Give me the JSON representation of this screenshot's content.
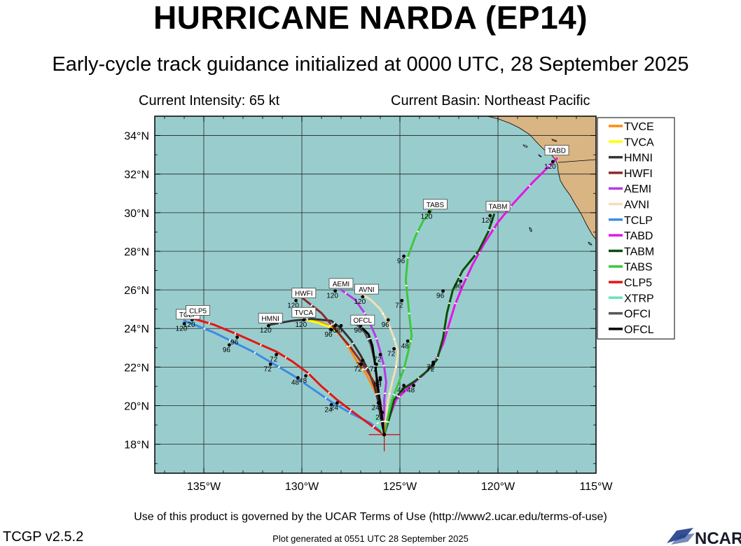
{
  "header": {
    "title": "HURRICANE NARDA (EP14)",
    "subtitle": "Early-cycle track guidance initialized at 0000 UTC, 28 September 2025",
    "intensity": "Current Intensity: 65 kt",
    "basin": "Current Basin: Northeast Pacific"
  },
  "footer": {
    "terms": "Use of this product is governed by the UCAR Terms of Use (http://www2.ucar.edu/terms-of-use)",
    "version": "TCGP v2.5.2",
    "generated": "Plot generated at 0551 UTC   28 September 2025",
    "logo": "NCAR"
  },
  "colors": {
    "ocean": "#99cdcd",
    "land": "#d9b583",
    "storm_marker": "#dd0000"
  },
  "chart_data": {
    "type": "map-track",
    "xlim": [
      -137.5,
      -115
    ],
    "ylim": [
      16.5,
      35
    ],
    "x_ticks": [
      -135,
      -130,
      -125,
      -120,
      -115
    ],
    "x_tick_labels": [
      "135°W",
      "130°W",
      "125°W",
      "120°W",
      "115°W"
    ],
    "y_ticks": [
      18,
      20,
      22,
      24,
      26,
      28,
      30,
      32,
      34
    ],
    "y_tick_labels": [
      "18°N",
      "20°N",
      "22°N",
      "24°N",
      "26°N",
      "28°N",
      "30°N",
      "32°N",
      "34°N"
    ],
    "grid": true,
    "legend_position": "right",
    "current_position": [
      -125.8,
      18.5
    ],
    "series": [
      {
        "name": "TVCE",
        "color": "#ff8a14",
        "points": [
          [
            -125.8,
            18.5
          ],
          [
            -125.9,
            19.3
          ],
          [
            -126.0,
            20.0
          ],
          [
            -126.3,
            20.8
          ],
          [
            -126.7,
            21.6
          ],
          [
            -127.2,
            22.3
          ],
          [
            -127.6,
            23.0
          ],
          [
            -128.0,
            23.6
          ],
          [
            -128.3,
            24.0
          ],
          [
            -129.0,
            24.3
          ],
          [
            -130.0,
            24.5
          ]
        ],
        "hours": [
          [
            "24",
            -125.9,
            19.5
          ],
          [
            "48",
            -126.0,
            21.2
          ],
          [
            "72",
            -126.9,
            22.2
          ],
          [
            "96",
            -128.3,
            24.0
          ],
          [
            "120",
            -129.9,
            24.3
          ]
        ],
        "box": null
      },
      {
        "name": "TVCA",
        "color": "#ffff00",
        "points": [
          [
            -125.8,
            18.5
          ],
          [
            -125.9,
            19.3
          ],
          [
            -126.0,
            20.0
          ],
          [
            -126.2,
            20.8
          ],
          [
            -126.5,
            21.6
          ],
          [
            -127.0,
            22.3
          ],
          [
            -127.5,
            23.0
          ],
          [
            -128.0,
            23.6
          ],
          [
            -128.4,
            24.0
          ],
          [
            -129.2,
            24.3
          ],
          [
            -130.0,
            24.5
          ]
        ],
        "hours": [],
        "box": [
          "TVCA",
          -129.9,
          24.8
        ]
      },
      {
        "name": "HMNI",
        "color": "#333333",
        "points": [
          [
            -125.8,
            18.5
          ],
          [
            -126.0,
            19.5
          ],
          [
            -126.1,
            20.2
          ],
          [
            -126.3,
            21.0
          ],
          [
            -126.6,
            21.8
          ],
          [
            -127.0,
            22.6
          ],
          [
            -127.5,
            23.4
          ],
          [
            -128.0,
            24.0
          ],
          [
            -128.5,
            24.4
          ],
          [
            -129.5,
            24.5
          ],
          [
            -130.5,
            24.4
          ],
          [
            -131.6,
            24.2
          ]
        ],
        "hours": [
          [
            "96",
            -128.0,
            24.0
          ],
          [
            "120",
            -131.7,
            24.0
          ]
        ],
        "box": [
          "HMNI",
          -131.6,
          24.5
        ]
      },
      {
        "name": "HWFI",
        "color": "#8b2a2a",
        "points": [
          [
            -125.8,
            18.5
          ],
          [
            -125.9,
            19.4
          ],
          [
            -126.0,
            20.2
          ],
          [
            -126.2,
            21.0
          ],
          [
            -126.6,
            21.7
          ],
          [
            -127.0,
            22.3
          ],
          [
            -127.5,
            23.0
          ],
          [
            -128.0,
            23.6
          ],
          [
            -128.5,
            24.2
          ],
          [
            -129.0,
            24.8
          ],
          [
            -129.5,
            25.2
          ],
          [
            -130.0,
            25.6
          ]
        ],
        "hours": [
          [
            "72",
            -127.0,
            22.0
          ],
          [
            "96",
            -128.5,
            23.8
          ],
          [
            "120",
            -130.3,
            25.3
          ]
        ],
        "box": [
          "HWFI",
          -129.9,
          25.8
        ]
      },
      {
        "name": "AEMI",
        "color": "#b43ce6",
        "points": [
          [
            -125.8,
            18.5
          ],
          [
            -125.8,
            19.5
          ],
          [
            -125.8,
            20.3
          ],
          [
            -125.7,
            21.2
          ],
          [
            -125.8,
            22.0
          ],
          [
            -126.0,
            22.8
          ],
          [
            -126.2,
            23.5
          ],
          [
            -126.5,
            24.2
          ],
          [
            -126.8,
            24.8
          ],
          [
            -127.3,
            25.5
          ],
          [
            -128.0,
            26.0
          ]
        ],
        "hours": [
          [
            "120",
            -128.3,
            25.8
          ]
        ],
        "box": [
          "AEMI",
          -128.0,
          26.3
        ]
      },
      {
        "name": "AVNI",
        "color": "#f5deb3",
        "points": [
          [
            -125.8,
            18.5
          ],
          [
            -125.7,
            19.5
          ],
          [
            -125.6,
            20.3
          ],
          [
            -125.4,
            21.2
          ],
          [
            -125.2,
            22.0
          ],
          [
            -125.1,
            22.8
          ],
          [
            -125.3,
            23.5
          ],
          [
            -125.6,
            24.3
          ],
          [
            -126.0,
            25.0
          ],
          [
            -126.5,
            25.5
          ],
          [
            -127.0,
            25.8
          ]
        ],
        "hours": [
          [
            "72",
            -125.3,
            22.8
          ],
          [
            "96",
            -125.6,
            24.3
          ],
          [
            "120",
            -126.9,
            25.5
          ]
        ],
        "box": [
          "AVNI",
          -126.7,
          26.0
        ]
      },
      {
        "name": "TCLP",
        "color": "#3c8ce6",
        "points": [
          [
            -125.8,
            18.5
          ],
          [
            -126.5,
            19.1
          ],
          [
            -127.5,
            19.6
          ],
          [
            -128.5,
            20.2
          ],
          [
            -129.5,
            20.9
          ],
          [
            -130.5,
            21.6
          ],
          [
            -131.5,
            22.2
          ],
          [
            -132.5,
            22.8
          ],
          [
            -133.5,
            23.3
          ],
          [
            -134.5,
            23.8
          ],
          [
            -135.5,
            24.2
          ],
          [
            -136.0,
            24.4
          ]
        ],
        "hours": [
          [
            "24",
            -128.5,
            19.9
          ],
          [
            "48",
            -130.2,
            21.3
          ],
          [
            "72",
            -131.6,
            22.0
          ],
          [
            "96",
            -133.7,
            23.0
          ],
          [
            "120",
            -136.0,
            24.1
          ]
        ],
        "box": [
          "TCLP",
          -135.8,
          24.7
        ]
      },
      {
        "name": "TABD",
        "color": "#e614e6",
        "points": [
          [
            -125.8,
            18.5
          ],
          [
            -125.5,
            19.5
          ],
          [
            -125.2,
            20.3
          ],
          [
            -124.5,
            21.0
          ],
          [
            -123.8,
            21.6
          ],
          [
            -123.2,
            22.3
          ],
          [
            -122.8,
            23.2
          ],
          [
            -122.5,
            24.2
          ],
          [
            -122.2,
            25.2
          ],
          [
            -121.8,
            26.2
          ],
          [
            -121.3,
            27.3
          ],
          [
            -120.7,
            28.4
          ],
          [
            -120.0,
            29.5
          ],
          [
            -119.2,
            30.5
          ],
          [
            -118.2,
            31.6
          ],
          [
            -117.0,
            32.8
          ]
        ],
        "hours": [
          [
            "48",
            -124.3,
            20.9
          ],
          [
            "72",
            -123.3,
            22.0
          ],
          [
            "96",
            -121.9,
            26.3
          ],
          [
            "120",
            -117.2,
            32.5
          ]
        ],
        "box": [
          "TABD",
          -117.0,
          33.2
        ]
      },
      {
        "name": "TABM",
        "color": "#0a500a",
        "points": [
          [
            -125.8,
            18.5
          ],
          [
            -125.5,
            19.5
          ],
          [
            -125.3,
            20.3
          ],
          [
            -124.8,
            20.9
          ],
          [
            -124.2,
            21.3
          ],
          [
            -123.6,
            21.8
          ],
          [
            -123.1,
            22.4
          ],
          [
            -122.8,
            23.5
          ],
          [
            -122.6,
            24.8
          ],
          [
            -122.3,
            26.0
          ],
          [
            -121.8,
            27.0
          ],
          [
            -121.0,
            28.0
          ],
          [
            -120.5,
            29.0
          ],
          [
            -120.2,
            29.9
          ]
        ],
        "hours": [
          [
            "48",
            -124.8,
            20.9
          ],
          [
            "72",
            -123.3,
            22.1
          ],
          [
            "96",
            -122.8,
            25.8
          ],
          [
            "120",
            -120.4,
            29.7
          ]
        ],
        "box": [
          "TABM",
          -120.0,
          30.3
        ]
      },
      {
        "name": "TABS",
        "color": "#3cc83c",
        "points": [
          [
            -125.8,
            18.5
          ],
          [
            -125.6,
            19.5
          ],
          [
            -125.4,
            20.3
          ],
          [
            -125.1,
            21.1
          ],
          [
            -124.8,
            21.9
          ],
          [
            -124.6,
            22.7
          ],
          [
            -124.4,
            23.6
          ],
          [
            -124.5,
            24.5
          ],
          [
            -124.6,
            25.5
          ],
          [
            -124.7,
            26.5
          ],
          [
            -124.6,
            27.7
          ],
          [
            -124.2,
            28.8
          ],
          [
            -123.8,
            29.6
          ],
          [
            -123.4,
            30.1
          ]
        ],
        "hours": [
          [
            "48",
            -124.6,
            23.2
          ],
          [
            "72",
            -124.9,
            25.3
          ],
          [
            "96",
            -124.8,
            27.6
          ],
          [
            "120",
            -123.5,
            29.9
          ]
        ],
        "box": [
          "TABS",
          -123.2,
          30.4
        ]
      },
      {
        "name": "CLP5",
        "color": "#e61414",
        "points": [
          [
            -125.8,
            18.5
          ],
          [
            -126.5,
            19.0
          ],
          [
            -127.3,
            19.6
          ],
          [
            -128.2,
            20.3
          ],
          [
            -129.0,
            21.0
          ],
          [
            -129.7,
            21.7
          ],
          [
            -130.5,
            22.3
          ],
          [
            -131.3,
            22.8
          ],
          [
            -132.2,
            23.2
          ],
          [
            -133.3,
            23.7
          ],
          [
            -134.5,
            24.2
          ],
          [
            -135.5,
            24.5
          ]
        ],
        "hours": [
          [
            "24",
            -128.2,
            20.0
          ],
          [
            "48",
            -129.8,
            21.4
          ],
          [
            "72",
            -131.3,
            22.5
          ],
          [
            "96",
            -133.3,
            23.4
          ],
          [
            "120",
            -135.6,
            24.3
          ]
        ],
        "box": [
          "CLP5",
          -135.3,
          24.9
        ]
      },
      {
        "name": "XTRP",
        "color": "#64e6b4",
        "points": [
          [
            -125.8,
            18.5
          ],
          [
            -126.1,
            19.0
          ],
          [
            -126.3,
            19.5
          ]
        ],
        "hours": [],
        "box": null
      },
      {
        "name": "OFCI",
        "color": "#555555",
        "points": [
          [
            -125.8,
            18.5
          ],
          [
            -125.9,
            19.3
          ],
          [
            -126.0,
            20.0
          ],
          [
            -126.1,
            20.8
          ],
          [
            -126.2,
            21.6
          ],
          [
            -126.3,
            22.4
          ],
          [
            -126.5,
            23.2
          ],
          [
            -126.8,
            23.8
          ],
          [
            -127.2,
            24.2
          ]
        ],
        "hours": [
          [
            "72",
            -126.2,
            22.0
          ],
          [
            "96",
            -127.0,
            24.0
          ]
        ],
        "box": null
      },
      {
        "name": "OFCL",
        "color": "#000000",
        "points": [
          [
            -125.8,
            18.5
          ],
          [
            -125.9,
            19.3
          ],
          [
            -126.0,
            20.0
          ],
          [
            -126.1,
            20.8
          ],
          [
            -126.2,
            21.6
          ],
          [
            -126.3,
            22.4
          ],
          [
            -126.4,
            23.1
          ],
          [
            -126.6,
            23.7
          ],
          [
            -126.9,
            24.0
          ]
        ],
        "hours": [
          [
            "24",
            -126.1,
            20.0
          ],
          [
            "48",
            -126.0,
            21.3
          ],
          [
            "72",
            -126.0,
            22.5
          ]
        ],
        "box": [
          "OFCL",
          -126.9,
          24.4
        ]
      }
    ]
  }
}
